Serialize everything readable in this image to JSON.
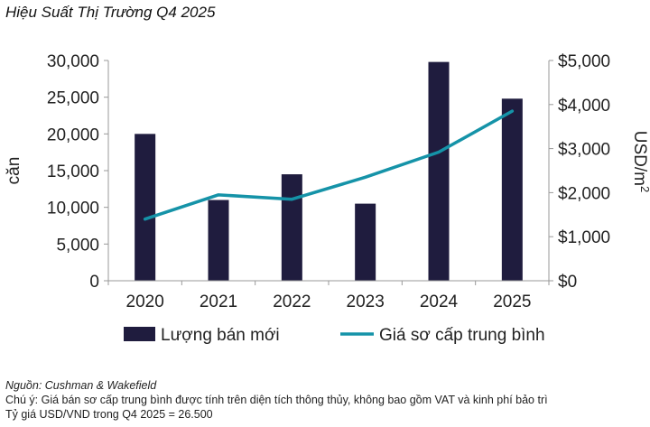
{
  "title": "Hiệu Suất Thị Trường Q4 2025",
  "chart_data": {
    "type": "bar",
    "title": "Hiệu Suất Thị Trường Q4 2025",
    "categories": [
      "2020",
      "2021",
      "2022",
      "2023",
      "2024",
      "2025"
    ],
    "series": [
      {
        "name": "Lượng bán mới",
        "type": "bar",
        "axis": "left",
        "values": [
          20000,
          11000,
          14500,
          10500,
          29800,
          24800
        ]
      },
      {
        "name": "Giá sơ cấp trung bình",
        "type": "line",
        "axis": "right",
        "values": [
          1400,
          1950,
          1850,
          2350,
          2920,
          3850
        ]
      }
    ],
    "ylabel": "căn",
    "ylabel_right": "USD/m",
    "ylabel_right_sup": "2",
    "ylim": [
      0,
      30000
    ],
    "ylim_right": [
      0,
      5000
    ],
    "yticks": [
      0,
      5000,
      10000,
      15000,
      20000,
      25000,
      30000
    ],
    "yticks_right": [
      0,
      1000,
      2000,
      3000,
      4000,
      5000
    ],
    "ytick_labels": [
      "0",
      "5,000",
      "10,000",
      "15,000",
      "20,000",
      "25,000",
      "30,000"
    ],
    "ytick_labels_right": [
      "$0",
      "$1,000",
      "$2,000",
      "$3,000",
      "$4,000",
      "$5,000"
    ],
    "grid": false,
    "legend_position": "bottom"
  },
  "colors": {
    "bar": "#1f1c3e",
    "line": "#1593a8",
    "axis": "#999999"
  },
  "notes": {
    "source": "Nguồn: Cushman & Wakefield",
    "note": "Chú ý: Giá bán sơ cấp trung bình được tính trên diện tích thông thủy, không bao gồm VAT và kinh phí bảo trì",
    "exchange": "Tỷ giá USD/VND trong Q4 2025 = 26.500"
  }
}
